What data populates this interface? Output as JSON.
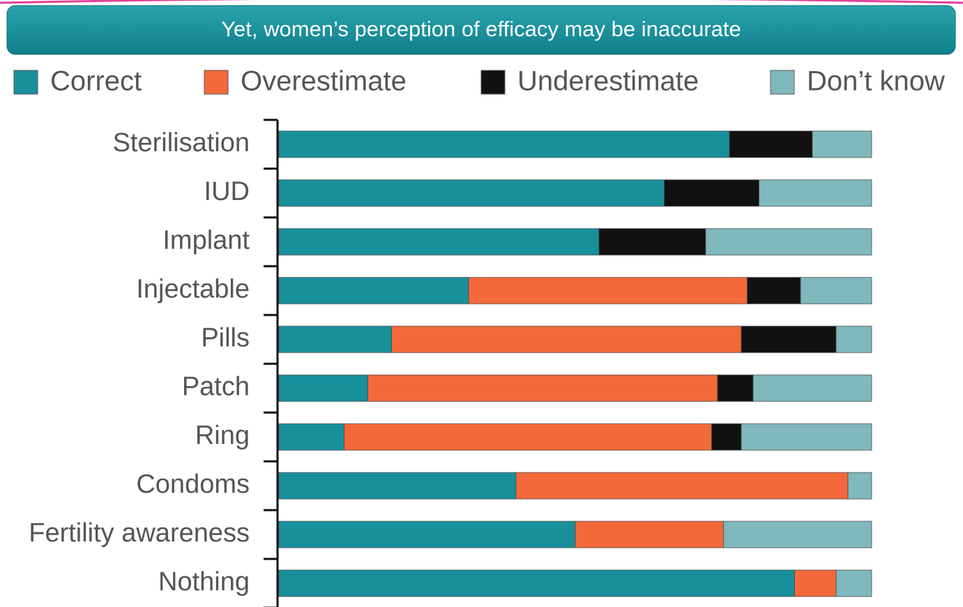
{
  "chart_data": {
    "type": "stacked-bar-horizontal",
    "title": "Yet, women’s perception of efficacy may be inaccurate",
    "categories": [
      "Sterilisation",
      "IUD",
      "Implant",
      "Injectable",
      "Pills",
      "Patch",
      "Ring",
      "Condoms",
      "Fertility awareness",
      "Nothing"
    ],
    "series": [
      {
        "name": "Correct",
        "color": "#17909c",
        "values": [
          76,
          65,
          54,
          32,
          19,
          15,
          11,
          40,
          50,
          87
        ]
      },
      {
        "name": "Overestimate",
        "color": "#f4693a",
        "values": [
          0,
          0,
          0,
          47,
          59,
          59,
          62,
          56,
          25,
          7
        ]
      },
      {
        "name": "Underestimate",
        "color": "#111111",
        "values": [
          14,
          16,
          18,
          9,
          16,
          6,
          5,
          0,
          0,
          0
        ]
      },
      {
        "name": "Don’t know",
        "color": "#7fb9bd",
        "values": [
          10,
          19,
          28,
          12,
          6,
          20,
          22,
          4,
          25,
          6
        ]
      }
    ],
    "xlim": [
      0,
      100
    ]
  }
}
